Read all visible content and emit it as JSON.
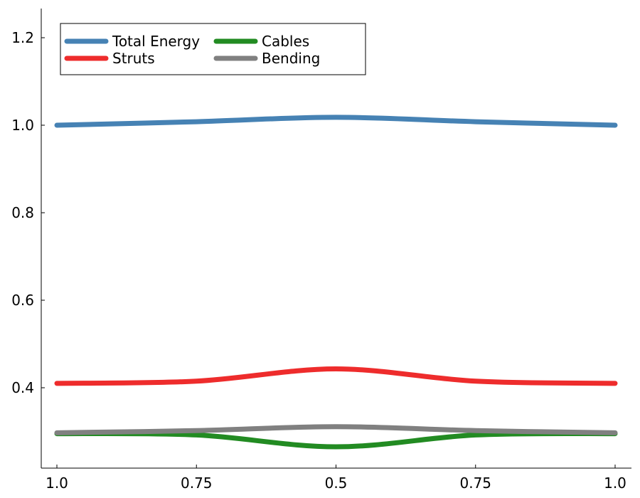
{
  "chart_data": {
    "type": "line",
    "categories": [
      "1.0",
      "0.75",
      "0.5",
      "0.75",
      "1.0"
    ],
    "series": [
      {
        "name": "Total Energy",
        "color": "#4682B4",
        "values": [
          1.0,
          1.008,
          1.018,
          1.008,
          1.0
        ]
      },
      {
        "name": "Cables",
        "color": "#228B22",
        "values": [
          0.295,
          0.292,
          0.265,
          0.292,
          0.295
        ]
      },
      {
        "name": "Struts",
        "color": "#EE2C2C",
        "values": [
          0.41,
          0.415,
          0.443,
          0.415,
          0.41
        ]
      },
      {
        "name": "Bending",
        "color": "#808080",
        "values": [
          0.297,
          0.302,
          0.311,
          0.302,
          0.297
        ]
      }
    ],
    "y_ticks": [
      0.4,
      0.6,
      0.8,
      1.0,
      1.2
    ],
    "y_tick_labels": [
      "0.4",
      "0.6",
      "0.8",
      "1.0",
      "1.2"
    ],
    "ylim": [
      0.22,
      1.27
    ],
    "legend_position": "top-left",
    "legend_columns": 2,
    "grid": false,
    "title": "",
    "xlabel": "",
    "ylabel": ""
  }
}
